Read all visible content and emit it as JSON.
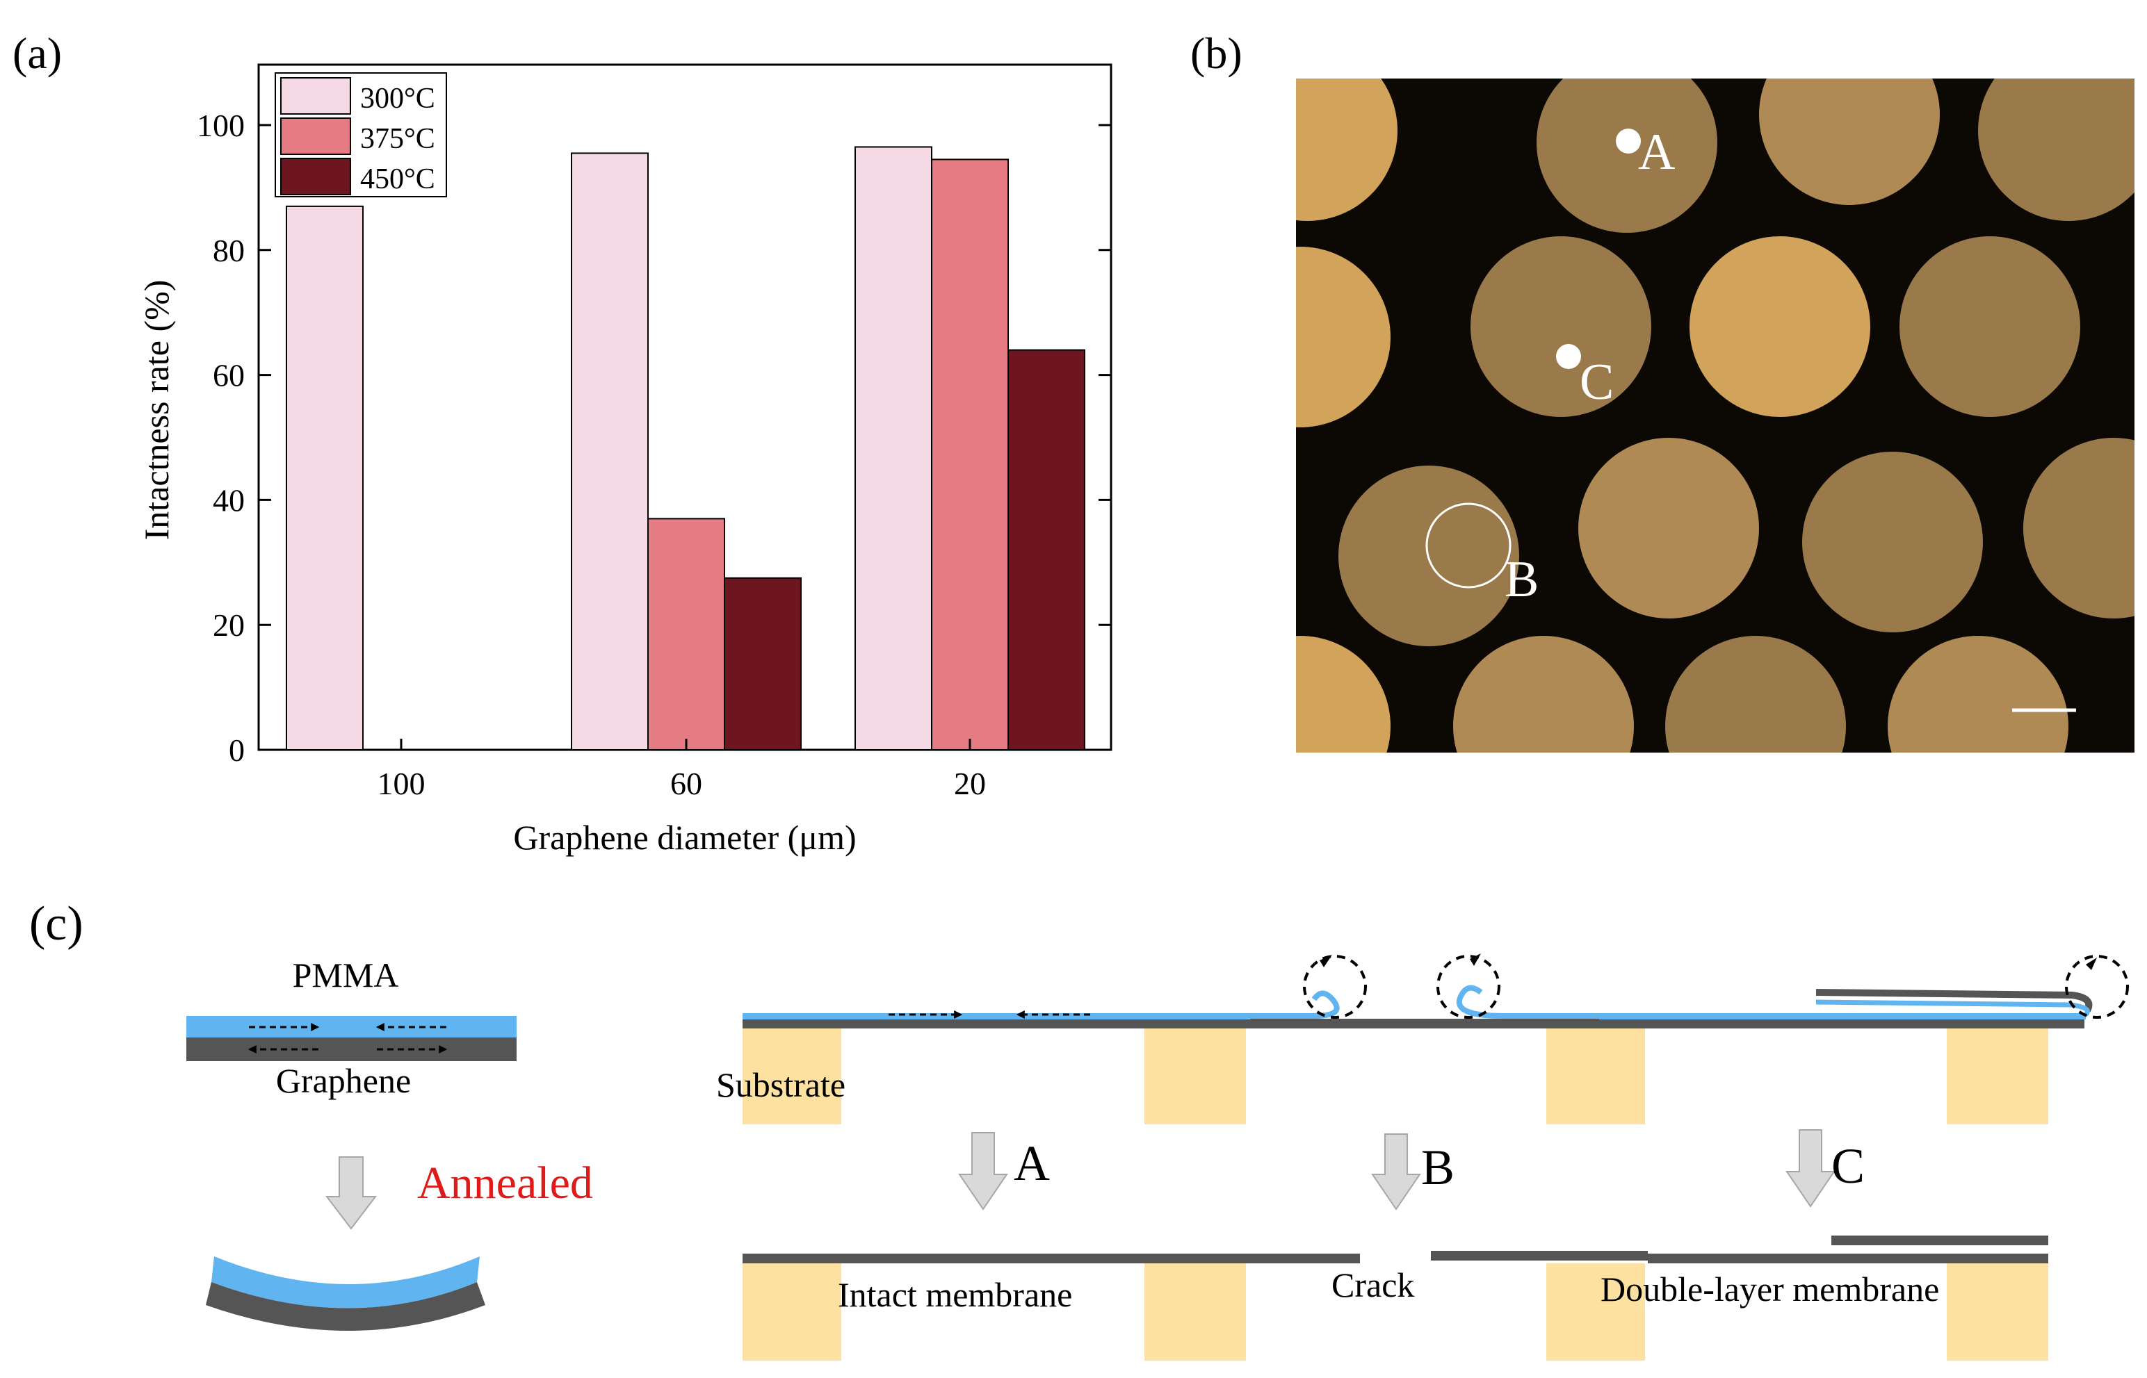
{
  "colors": {
    "c300": "#f5d9e4",
    "c375": "#e57c84",
    "c450": "#6e1620",
    "pmma": "#60b4f0",
    "graphene": "#555555",
    "substrate": "#fde1a0",
    "annealed": "#e01919",
    "arrow_fill": "#d9d9d9",
    "micro_bg": "#0c0804",
    "micro_hole": "#c89a55"
  },
  "panel_a": {
    "label": "(a)",
    "chart_data": {
      "type": "bar",
      "title": "",
      "xlabel": "Graphene diameter (μm)",
      "ylabel": "Intactness rate (%)",
      "ylim": [
        0,
        110
      ],
      "yticks": [
        0,
        20,
        40,
        60,
        80,
        100
      ],
      "categories": [
        "100",
        "60",
        "20"
      ],
      "series": [
        {
          "name": "300°C",
          "color_key": "c300",
          "values": [
            87,
            95.5,
            96.5
          ]
        },
        {
          "name": "375°C",
          "color_key": "c375",
          "values": [
            null,
            37,
            94.5
          ]
        },
        {
          "name": "450°C",
          "color_key": "c450",
          "values": [
            null,
            27.5,
            64
          ]
        }
      ],
      "legend_position": "top-left",
      "grid": false
    }
  },
  "panel_b": {
    "label": "(b)",
    "markers": [
      "A",
      "B",
      "C"
    ]
  },
  "panel_c": {
    "label": "(c)",
    "pmma": "PMMA",
    "graphene": "Graphene",
    "annealed": "Annealed",
    "substrate": "Substrate",
    "step_a": "A",
    "step_b": "B",
    "step_c": "C",
    "intact": "Intact membrane",
    "crack": "Crack",
    "double": "Double-layer membrane"
  }
}
